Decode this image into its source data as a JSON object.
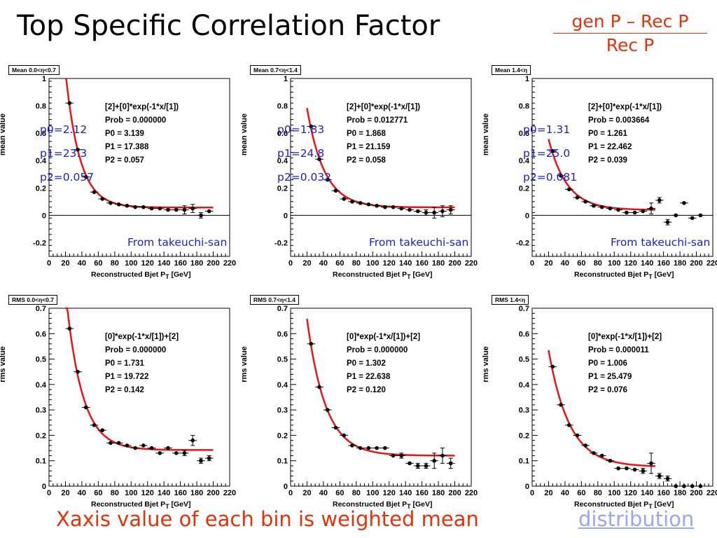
{
  "slide": {
    "title": "Top Specific Correlation Factor",
    "ratio_numerator": "gen P – Rec P",
    "ratio_denominator": "Rec P",
    "footer_note": "Xaxis value of each bin is weighted mean",
    "footer_link": "distribution"
  },
  "colors": {
    "fit_line": "#e8141a",
    "annotation": "#2020c8",
    "slide_accent": "#e6320a"
  },
  "chart_data": [
    {
      "type": "scatter",
      "tag": "Mean 0.0<η<0.7",
      "xlabel": "Reconstructed Bjet P",
      "xlabel_sub": "T",
      "xlabel_unit": " [GeV]",
      "ylabel": "mean value",
      "xlim": [
        0,
        220
      ],
      "ylim": [
        -0.3,
        1.0
      ],
      "xticks": [
        0,
        20,
        40,
        60,
        80,
        100,
        120,
        140,
        160,
        180,
        200,
        220
      ],
      "xtick_labels": [
        "0",
        "20",
        "40",
        "60",
        "80",
        "100",
        "120",
        "140",
        "160",
        "180",
        "200",
        "220"
      ],
      "yticks": [
        -0.2,
        0,
        0.2,
        0.4,
        0.6,
        0.8,
        1
      ],
      "ytick_labels": [
        "-0.2",
        "0",
        "0.2",
        "0.4",
        "0.6",
        "0.8",
        "1"
      ],
      "zero_line": true,
      "fit": {
        "formula": "[2]+[0]*exp(-1*x/[1])",
        "prob": "0.000000",
        "p0": 3.139,
        "p1": 17.388,
        "p2": 0.057,
        "x_start": 20,
        "x_end": 200
      },
      "stats_text": [
        "[2]+[0]*exp(-1*x/[1])",
        "Prob  = 0.000000",
        "P0 =  3.139",
        "P1 = 17.388",
        "P2 =  0.057"
      ],
      "points": [
        {
          "x": 25,
          "y": 0.82,
          "err": 0
        },
        {
          "x": 35,
          "y": 0.48,
          "err": 0
        },
        {
          "x": 45,
          "y": 0.28,
          "err": 0
        },
        {
          "x": 55,
          "y": 0.17,
          "err": 0
        },
        {
          "x": 65,
          "y": 0.12,
          "err": 0
        },
        {
          "x": 75,
          "y": 0.09,
          "err": 0
        },
        {
          "x": 85,
          "y": 0.08,
          "err": 0
        },
        {
          "x": 95,
          "y": 0.07,
          "err": 0
        },
        {
          "x": 105,
          "y": 0.06,
          "err": 0
        },
        {
          "x": 115,
          "y": 0.06,
          "err": 0
        },
        {
          "x": 125,
          "y": 0.05,
          "err": 0
        },
        {
          "x": 135,
          "y": 0.05,
          "err": 0
        },
        {
          "x": 145,
          "y": 0.04,
          "err": 0
        },
        {
          "x": 155,
          "y": 0.04,
          "err": 0
        },
        {
          "x": 165,
          "y": 0.04,
          "err": 0.03
        },
        {
          "x": 175,
          "y": 0.05,
          "err": 0.03
        },
        {
          "x": 185,
          "y": 0.0,
          "err": 0.02
        },
        {
          "x": 195,
          "y": 0.03,
          "err": 0
        }
      ],
      "overlay": [
        "p0=2.12",
        "p1=23.3",
        "p2=0.057"
      ],
      "note": "From takeuchi-san"
    },
    {
      "type": "scatter",
      "tag": "Mean 0.7<η<1.4",
      "xlabel": "Reconstructed Bjet P",
      "xlabel_sub": "T",
      "xlabel_unit": " [GeV]",
      "ylabel": "mean value",
      "xlim": [
        0,
        220
      ],
      "ylim": [
        -0.3,
        1.0
      ],
      "xticks": [
        0,
        20,
        40,
        60,
        80,
        100,
        120,
        140,
        160,
        180,
        200,
        220
      ],
      "xtick_labels": [
        "0",
        "20",
        "40",
        "60",
        "80",
        "100",
        "120",
        "140",
        "160",
        "180",
        "200",
        "220"
      ],
      "yticks": [
        -0.2,
        0,
        0.2,
        0.4,
        0.6,
        0.8,
        1
      ],
      "ytick_labels": [
        "-0.2",
        "0",
        "0.2",
        "0.4",
        "0.6",
        "0.8",
        "1"
      ],
      "zero_line": true,
      "fit": {
        "formula": "[2]+[0]*exp(-1*x/[1])",
        "prob": "0.012771",
        "p0": 1.868,
        "p1": 21.159,
        "p2": 0.058,
        "x_start": 20,
        "x_end": 200
      },
      "stats_text": [
        "[2]+[0]*exp(-1*x/[1])",
        "Prob  = 0.012771",
        "P0 =  1.868",
        "P1 = 21.159",
        "P2 =  0.058"
      ],
      "points": [
        {
          "x": 25,
          "y": 0.65,
          "err": 0
        },
        {
          "x": 35,
          "y": 0.41,
          "err": 0
        },
        {
          "x": 45,
          "y": 0.26,
          "err": 0
        },
        {
          "x": 55,
          "y": 0.18,
          "err": 0
        },
        {
          "x": 65,
          "y": 0.12,
          "err": 0
        },
        {
          "x": 75,
          "y": 0.1,
          "err": 0
        },
        {
          "x": 85,
          "y": 0.09,
          "err": 0
        },
        {
          "x": 95,
          "y": 0.08,
          "err": 0
        },
        {
          "x": 105,
          "y": 0.07,
          "err": 0
        },
        {
          "x": 115,
          "y": 0.06,
          "err": 0
        },
        {
          "x": 125,
          "y": 0.06,
          "err": 0
        },
        {
          "x": 135,
          "y": 0.05,
          "err": 0
        },
        {
          "x": 145,
          "y": 0.04,
          "err": 0
        },
        {
          "x": 155,
          "y": 0.03,
          "err": 0
        },
        {
          "x": 165,
          "y": 0.02,
          "err": 0.02
        },
        {
          "x": 175,
          "y": 0.02,
          "err": 0.04
        },
        {
          "x": 185,
          "y": 0.03,
          "err": 0.04
        },
        {
          "x": 195,
          "y": 0.04,
          "err": 0.03
        }
      ],
      "overlay": [
        "p0=1.83",
        "p1=24.8",
        "p2=0.032"
      ],
      "note": "From takeuchi-san"
    },
    {
      "type": "scatter",
      "tag": "Mean 1.4<η",
      "xlabel": "Reconstructed Bjet P",
      "xlabel_sub": "T",
      "xlabel_unit": " [GeV]",
      "ylabel": "mean value",
      "xlim": [
        0,
        220
      ],
      "ylim": [
        -0.3,
        1.0
      ],
      "xticks": [
        0,
        20,
        40,
        60,
        80,
        100,
        120,
        140,
        160,
        180,
        200,
        220
      ],
      "xtick_labels": [
        "0",
        "20",
        "40",
        "60",
        "80",
        "100",
        "120",
        "140",
        "160",
        "180",
        "200",
        "220"
      ],
      "yticks": [
        -0.2,
        0,
        0.2,
        0.4,
        0.6,
        0.8,
        1
      ],
      "ytick_labels": [
        "-0.2",
        "0",
        "0.2",
        "0.4",
        "0.6",
        "0.8",
        "1"
      ],
      "zero_line": true,
      "fit": {
        "formula": "[2]+[0]*exp(-1*x/[1])",
        "prob": "0.003664",
        "p0": 1.261,
        "p1": 22.462,
        "p2": 0.039,
        "x_start": 20,
        "x_end": 150
      },
      "stats_text": [
        "[2]+[0]*exp(-1*x/[1])",
        "Prob  = 0.003664",
        "P0 =  1.261",
        "P1 = 22.462",
        "P2 =  0.039"
      ],
      "points": [
        {
          "x": 25,
          "y": 0.47,
          "err": 0
        },
        {
          "x": 35,
          "y": 0.29,
          "err": 0
        },
        {
          "x": 45,
          "y": 0.19,
          "err": 0
        },
        {
          "x": 55,
          "y": 0.13,
          "err": 0
        },
        {
          "x": 65,
          "y": 0.1,
          "err": 0
        },
        {
          "x": 75,
          "y": 0.07,
          "err": 0
        },
        {
          "x": 85,
          "y": 0.06,
          "err": 0
        },
        {
          "x": 95,
          "y": 0.05,
          "err": 0
        },
        {
          "x": 105,
          "y": 0.04,
          "err": 0
        },
        {
          "x": 115,
          "y": 0.02,
          "err": 0
        },
        {
          "x": 125,
          "y": 0.02,
          "err": 0
        },
        {
          "x": 135,
          "y": 0.03,
          "err": 0
        },
        {
          "x": 145,
          "y": 0.05,
          "err": 0.04
        },
        {
          "x": 155,
          "y": 0.11,
          "err": 0.02
        },
        {
          "x": 165,
          "y": -0.05,
          "err": 0.02
        },
        {
          "x": 175,
          "y": 0.0,
          "err": 0
        },
        {
          "x": 185,
          "y": 0.09,
          "err": 0
        },
        {
          "x": 195,
          "y": -0.02,
          "err": 0
        },
        {
          "x": 205,
          "y": 0.0,
          "err": 0
        }
      ],
      "overlay": [
        "p0=1.31",
        "p1=25.0",
        "p2=0.081"
      ],
      "note": "From takeuchi-san"
    },
    {
      "type": "scatter",
      "tag": "RMS 0.0<η<0.7",
      "xlabel": "Reconstructed Bjet P",
      "xlabel_sub": "T",
      "xlabel_unit": " [GeV]",
      "ylabel": "rms value",
      "xlim": [
        0,
        220
      ],
      "ylim": [
        0,
        0.7
      ],
      "xticks": [
        0,
        20,
        40,
        60,
        80,
        100,
        120,
        140,
        160,
        180,
        200,
        220
      ],
      "xtick_labels": [
        "0",
        "20",
        "40",
        "60",
        "80",
        "100",
        "120",
        "140",
        "160",
        "180",
        "200",
        "220"
      ],
      "yticks": [
        0,
        0.1,
        0.2,
        0.3,
        0.4,
        0.5,
        0.6,
        0.7
      ],
      "ytick_labels": [
        "0",
        "0.1",
        "0.2",
        "0.3",
        "0.4",
        "0.5",
        "0.6",
        "0.7"
      ],
      "zero_line": false,
      "fit": {
        "formula": "[0]*exp(-1*x/[1])+[2]",
        "prob": "0.000000",
        "p0": 1.731,
        "p1": 19.722,
        "p2": 0.142,
        "x_start": 20,
        "x_end": 200
      },
      "stats_text": [
        "[0]*exp(-1*x/[1])+[2]",
        "Prob  = 0.000000",
        "P0 =  1.731",
        "P1 = 19.722",
        "P2 =  0.142"
      ],
      "points": [
        {
          "x": 25,
          "y": 0.62,
          "err": 0
        },
        {
          "x": 35,
          "y": 0.45,
          "err": 0
        },
        {
          "x": 45,
          "y": 0.31,
          "err": 0
        },
        {
          "x": 55,
          "y": 0.24,
          "err": 0
        },
        {
          "x": 65,
          "y": 0.22,
          "err": 0
        },
        {
          "x": 75,
          "y": 0.17,
          "err": 0
        },
        {
          "x": 85,
          "y": 0.17,
          "err": 0
        },
        {
          "x": 95,
          "y": 0.16,
          "err": 0
        },
        {
          "x": 105,
          "y": 0.15,
          "err": 0
        },
        {
          "x": 115,
          "y": 0.16,
          "err": 0
        },
        {
          "x": 125,
          "y": 0.15,
          "err": 0
        },
        {
          "x": 135,
          "y": 0.13,
          "err": 0
        },
        {
          "x": 145,
          "y": 0.15,
          "err": 0
        },
        {
          "x": 155,
          "y": 0.13,
          "err": 0
        },
        {
          "x": 165,
          "y": 0.13,
          "err": 0.01
        },
        {
          "x": 175,
          "y": 0.18,
          "err": 0.02
        },
        {
          "x": 185,
          "y": 0.1,
          "err": 0.01
        },
        {
          "x": 195,
          "y": 0.11,
          "err": 0.01
        }
      ],
      "overlay": [],
      "note": ""
    },
    {
      "type": "scatter",
      "tag": "RMS 0.7<η<1.4",
      "xlabel": "Reconstructed Bjet P",
      "xlabel_sub": "T",
      "xlabel_unit": " [GeV]",
      "ylabel": "rms value",
      "xlim": [
        0,
        220
      ],
      "ylim": [
        0,
        0.7
      ],
      "xticks": [
        0,
        20,
        40,
        60,
        80,
        100,
        120,
        140,
        160,
        180,
        200,
        220
      ],
      "xtick_labels": [
        "0",
        "20",
        "40",
        "60",
        "80",
        "100",
        "120",
        "140",
        "160",
        "180",
        "200",
        "220"
      ],
      "yticks": [
        0,
        0.1,
        0.2,
        0.3,
        0.4,
        0.5,
        0.6,
        0.7
      ],
      "ytick_labels": [
        "0",
        "0.1",
        "0.2",
        "0.3",
        "0.4",
        "0.5",
        "0.6",
        "0.7"
      ],
      "zero_line": false,
      "fit": {
        "formula": "[0]*exp(-1*x/[1])+[2]",
        "prob": "0.000000",
        "p0": 1.302,
        "p1": 22.638,
        "p2": 0.12,
        "x_start": 20,
        "x_end": 200
      },
      "stats_text": [
        "[0]*exp(-1*x/[1])+[2]",
        "Prob  = 0.000000",
        "P0 =  1.302",
        "P1 = 22.638",
        "P2 =  0.120"
      ],
      "points": [
        {
          "x": 25,
          "y": 0.56,
          "err": 0
        },
        {
          "x": 35,
          "y": 0.39,
          "err": 0
        },
        {
          "x": 45,
          "y": 0.3,
          "err": 0
        },
        {
          "x": 55,
          "y": 0.23,
          "err": 0
        },
        {
          "x": 65,
          "y": 0.2,
          "err": 0
        },
        {
          "x": 75,
          "y": 0.16,
          "err": 0
        },
        {
          "x": 85,
          "y": 0.15,
          "err": 0
        },
        {
          "x": 95,
          "y": 0.15,
          "err": 0
        },
        {
          "x": 105,
          "y": 0.15,
          "err": 0
        },
        {
          "x": 115,
          "y": 0.15,
          "err": 0
        },
        {
          "x": 125,
          "y": 0.12,
          "err": 0
        },
        {
          "x": 135,
          "y": 0.12,
          "err": 0.01
        },
        {
          "x": 145,
          "y": 0.09,
          "err": 0
        },
        {
          "x": 155,
          "y": 0.08,
          "err": 0.01
        },
        {
          "x": 165,
          "y": 0.08,
          "err": 0.01
        },
        {
          "x": 175,
          "y": 0.1,
          "err": 0.03
        },
        {
          "x": 185,
          "y": 0.12,
          "err": 0.03
        },
        {
          "x": 195,
          "y": 0.09,
          "err": 0.02
        }
      ],
      "overlay": [],
      "note": ""
    },
    {
      "type": "scatter",
      "tag": "RMS 1.4<η",
      "xlabel": "Reconstructed Bjet P",
      "xlabel_sub": "T",
      "xlabel_unit": " [GeV]",
      "ylabel": "rms value",
      "xlim": [
        0,
        220
      ],
      "ylim": [
        0,
        0.7
      ],
      "xticks": [
        0,
        20,
        40,
        60,
        80,
        100,
        120,
        140,
        160,
        180,
        200,
        220
      ],
      "xtick_labels": [
        "0",
        "20",
        "40",
        "60",
        "80",
        "100",
        "120",
        "140",
        "160",
        "180",
        "200",
        "220"
      ],
      "yticks": [
        0,
        0.1,
        0.2,
        0.3,
        0.4,
        0.5,
        0.6,
        0.7
      ],
      "ytick_labels": [
        "0",
        "0.1",
        "0.2",
        "0.3",
        "0.4",
        "0.5",
        "0.6",
        "0.7"
      ],
      "zero_line": false,
      "fit": {
        "formula": "[0]*exp(-1*x/[1])+[2]",
        "prob": "0.000011",
        "p0": 1.006,
        "p1": 25.479,
        "p2": 0.076,
        "x_start": 20,
        "x_end": 150
      },
      "stats_text": [
        "[0]*exp(-1*x/[1])+[2]",
        "Prob  = 0.000011",
        "P0 =  1.006",
        "P1 = 25.479",
        "P2 =  0.076"
      ],
      "points": [
        {
          "x": 25,
          "y": 0.47,
          "err": 0
        },
        {
          "x": 35,
          "y": 0.32,
          "err": 0
        },
        {
          "x": 45,
          "y": 0.24,
          "err": 0
        },
        {
          "x": 55,
          "y": 0.2,
          "err": 0
        },
        {
          "x": 65,
          "y": 0.16,
          "err": 0
        },
        {
          "x": 75,
          "y": 0.13,
          "err": 0
        },
        {
          "x": 85,
          "y": 0.12,
          "err": 0
        },
        {
          "x": 95,
          "y": 0.1,
          "err": 0
        },
        {
          "x": 105,
          "y": 0.07,
          "err": 0
        },
        {
          "x": 115,
          "y": 0.07,
          "err": 0
        },
        {
          "x": 125,
          "y": 0.065,
          "err": 0
        },
        {
          "x": 135,
          "y": 0.06,
          "err": 0.01
        },
        {
          "x": 145,
          "y": 0.09,
          "err": 0.04
        },
        {
          "x": 155,
          "y": 0.04,
          "err": 0.01
        },
        {
          "x": 165,
          "y": 0.03,
          "err": 0.01
        },
        {
          "x": 175,
          "y": 0.0,
          "err": 0
        },
        {
          "x": 185,
          "y": 0.0,
          "err": 0
        },
        {
          "x": 195,
          "y": 0.0,
          "err": 0
        },
        {
          "x": 205,
          "y": 0.0,
          "err": 0
        }
      ],
      "overlay": [],
      "note": ""
    }
  ]
}
